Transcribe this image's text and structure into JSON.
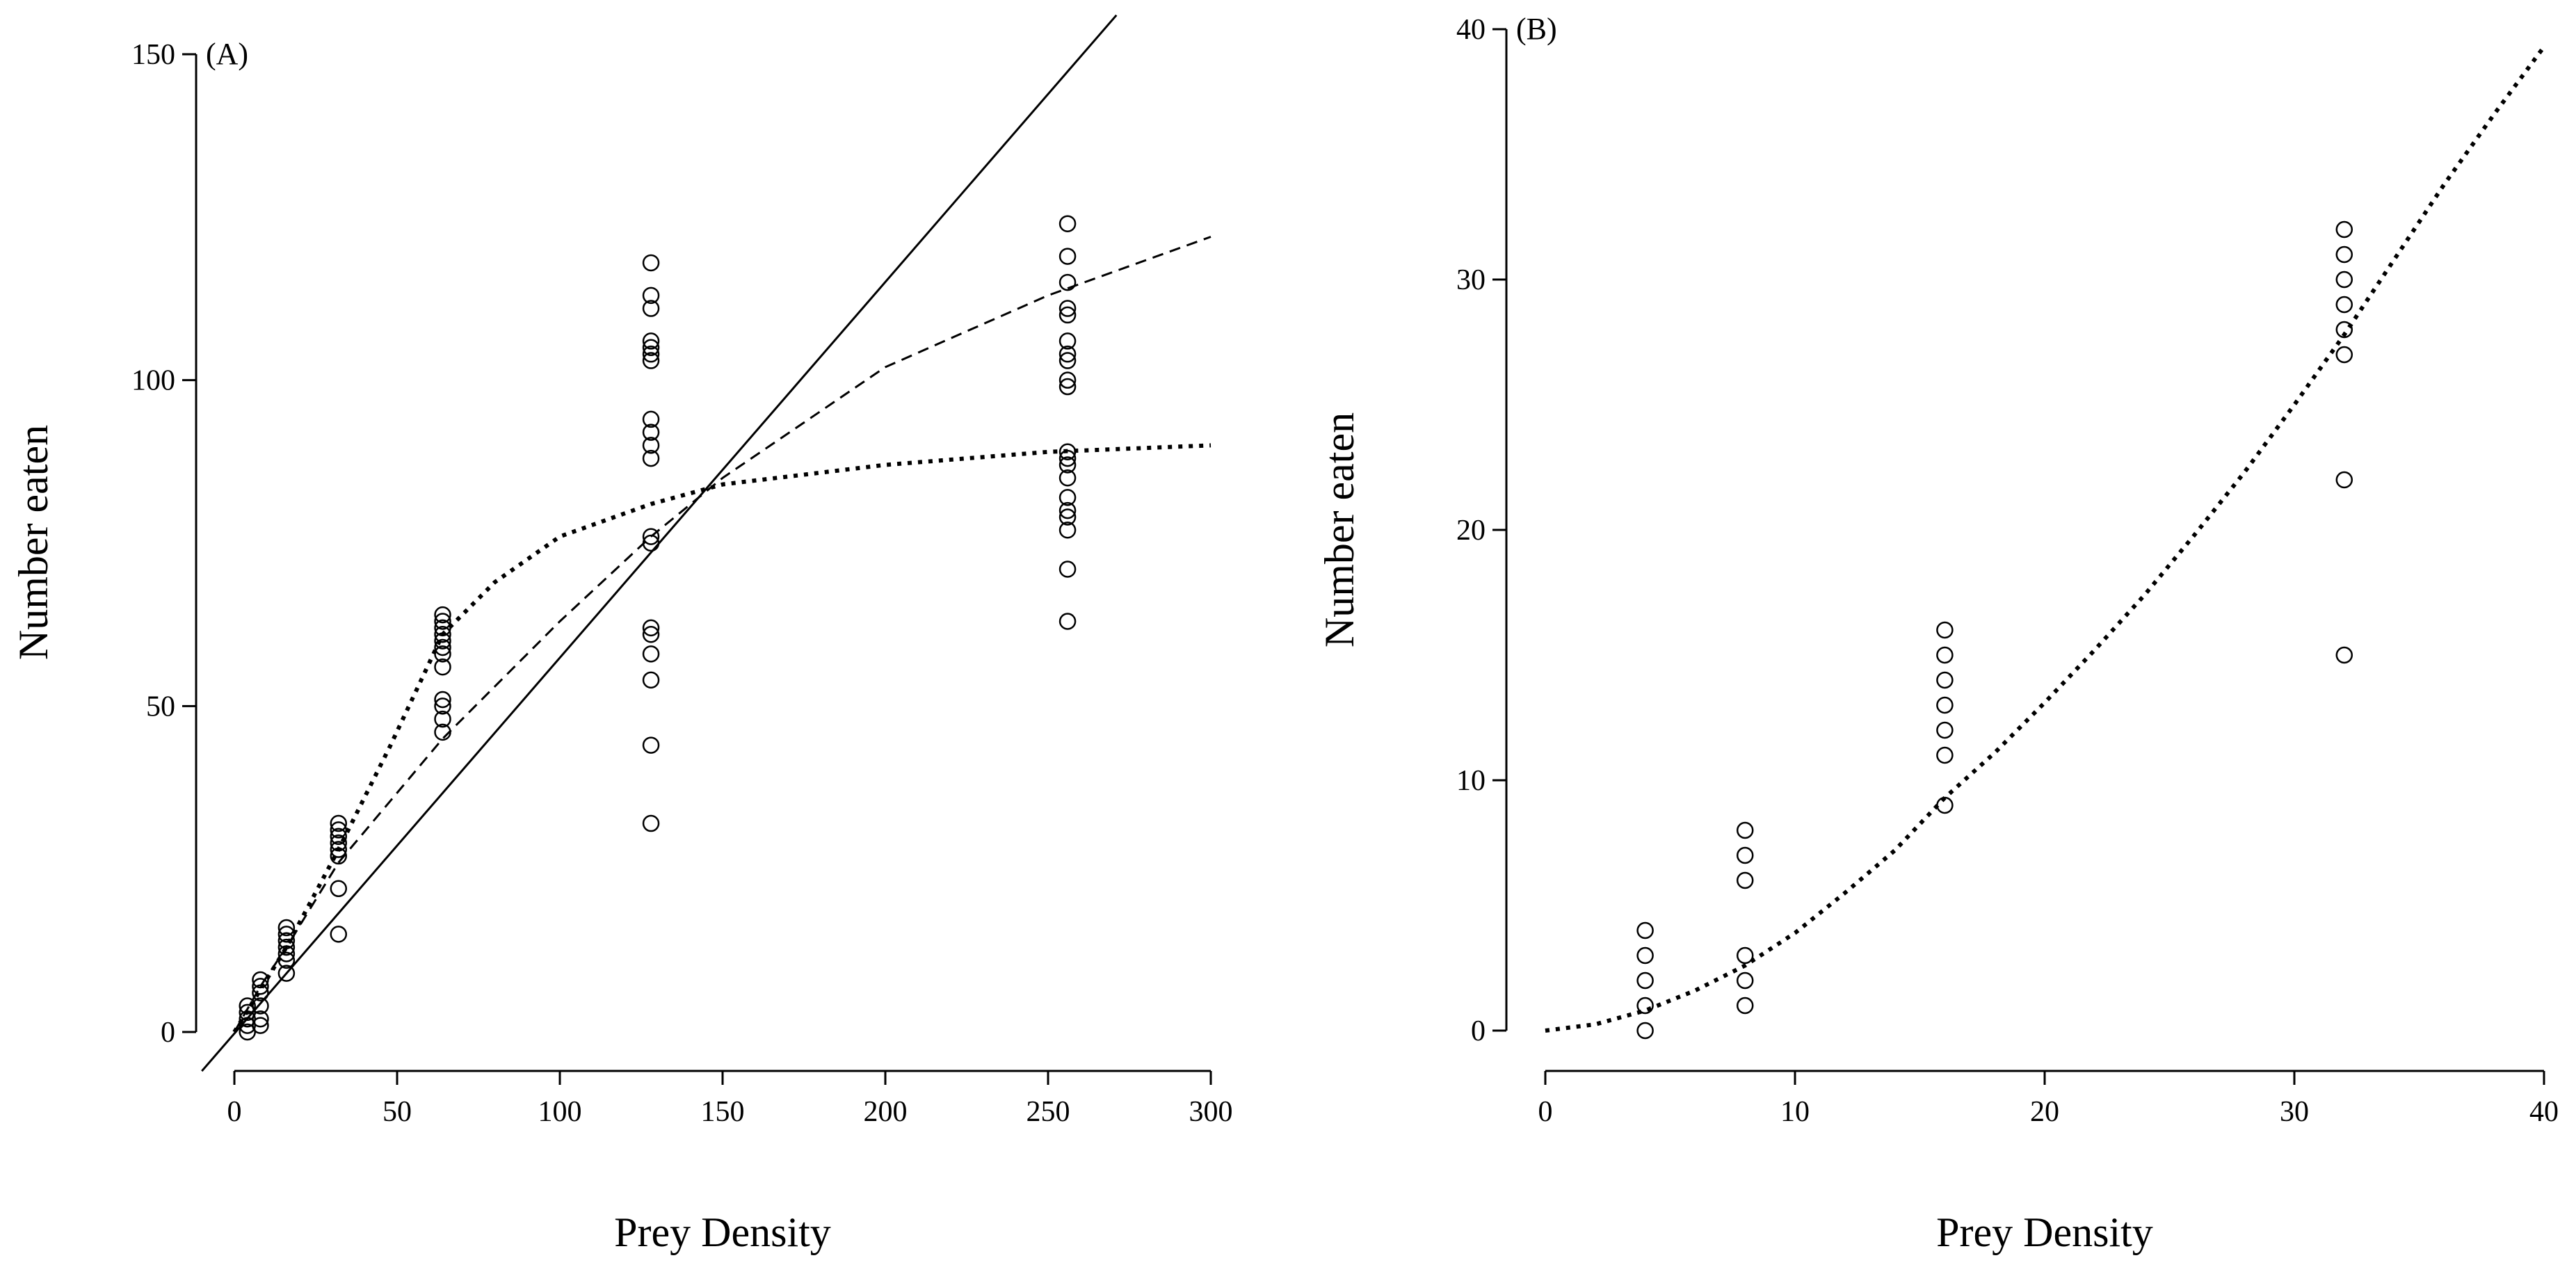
{
  "chart_data": [
    {
      "type": "scatter",
      "panel_label": "(A)",
      "xlabel": "Prey Density",
      "ylabel": "Number eaten",
      "xlim": [
        0,
        300
      ],
      "ylim": [
        0,
        150
      ],
      "xticks": [
        0,
        50,
        100,
        150,
        200,
        250,
        300
      ],
      "yticks": [
        0,
        50,
        100,
        150
      ],
      "grid": false,
      "series": [
        {
          "kind": "points",
          "marker": "open-circle",
          "points": [
            [
              4,
              0
            ],
            [
              4,
              1
            ],
            [
              4,
              2
            ],
            [
              4,
              3
            ],
            [
              4,
              4
            ],
            [
              8,
              1
            ],
            [
              8,
              2
            ],
            [
              8,
              4
            ],
            [
              8,
              6
            ],
            [
              8,
              7
            ],
            [
              8,
              8
            ],
            [
              16,
              9
            ],
            [
              16,
              11
            ],
            [
              16,
              12
            ],
            [
              16,
              13
            ],
            [
              16,
              14
            ],
            [
              16,
              15
            ],
            [
              16,
              16
            ],
            [
              32,
              15
            ],
            [
              32,
              22
            ],
            [
              32,
              27
            ],
            [
              32,
              28
            ],
            [
              32,
              29
            ],
            [
              32,
              30
            ],
            [
              32,
              31
            ],
            [
              32,
              32
            ],
            [
              64,
              46
            ],
            [
              64,
              48
            ],
            [
              64,
              50
            ],
            [
              64,
              51
            ],
            [
              64,
              56
            ],
            [
              64,
              58
            ],
            [
              64,
              59
            ],
            [
              64,
              60
            ],
            [
              64,
              61
            ],
            [
              64,
              62
            ],
            [
              64,
              63
            ],
            [
              64,
              64
            ],
            [
              128,
              32
            ],
            [
              128,
              44
            ],
            [
              128,
              54
            ],
            [
              128,
              58
            ],
            [
              128,
              61
            ],
            [
              128,
              62
            ],
            [
              128,
              75
            ],
            [
              128,
              76
            ],
            [
              128,
              88
            ],
            [
              128,
              90
            ],
            [
              128,
              92
            ],
            [
              128,
              94
            ],
            [
              128,
              103
            ],
            [
              128,
              104
            ],
            [
              128,
              105
            ],
            [
              128,
              106
            ],
            [
              128,
              111
            ],
            [
              128,
              113
            ],
            [
              128,
              118
            ],
            [
              256,
              63
            ],
            [
              256,
              71
            ],
            [
              256,
              77
            ],
            [
              256,
              79
            ],
            [
              256,
              80
            ],
            [
              256,
              82
            ],
            [
              256,
              85
            ],
            [
              256,
              87
            ],
            [
              256,
              88
            ],
            [
              256,
              89
            ],
            [
              256,
              99
            ],
            [
              256,
              100
            ],
            [
              256,
              103
            ],
            [
              256,
              104
            ],
            [
              256,
              106
            ],
            [
              256,
              110
            ],
            [
              256,
              111
            ],
            [
              256,
              115
            ],
            [
              256,
              119
            ],
            [
              256,
              124
            ]
          ]
        },
        {
          "kind": "line",
          "style": "solid",
          "points": [
            [
              -10,
              -6
            ],
            [
              271,
              156
            ]
          ]
        },
        {
          "kind": "line",
          "style": "dashed",
          "points": [
            [
              0,
              0
            ],
            [
              8,
              7
            ],
            [
              16,
              13
            ],
            [
              32,
              26
            ],
            [
              64,
              45
            ],
            [
              100,
              63
            ],
            [
              128,
              76
            ],
            [
              150,
              85
            ],
            [
              200,
              102
            ],
            [
              250,
              113
            ],
            [
              300,
              122
            ]
          ]
        },
        {
          "kind": "line",
          "style": "dotted",
          "points": [
            [
              0,
              0
            ],
            [
              16,
              13
            ],
            [
              32,
              28
            ],
            [
              48,
              44
            ],
            [
              64,
              61
            ],
            [
              80,
              69
            ],
            [
              100,
              76
            ],
            [
              128,
              81
            ],
            [
              150,
              84
            ],
            [
              200,
              87
            ],
            [
              250,
              89
            ],
            [
              300,
              90
            ]
          ]
        }
      ]
    },
    {
      "type": "scatter",
      "panel_label": "(B)",
      "xlabel": "Prey Density",
      "ylabel": "Number eaten",
      "xlim": [
        0,
        40
      ],
      "ylim": [
        0,
        40
      ],
      "xticks": [
        0,
        10,
        20,
        30,
        40
      ],
      "yticks": [
        0,
        10,
        20,
        30,
        40
      ],
      "grid": false,
      "series": [
        {
          "kind": "points",
          "marker": "open-circle",
          "points": [
            [
              4,
              0
            ],
            [
              4,
              1
            ],
            [
              4,
              2
            ],
            [
              4,
              3
            ],
            [
              4,
              4
            ],
            [
              8,
              1
            ],
            [
              8,
              2
            ],
            [
              8,
              3
            ],
            [
              8,
              6
            ],
            [
              8,
              7
            ],
            [
              8,
              8
            ],
            [
              16,
              9
            ],
            [
              16,
              11
            ],
            [
              16,
              12
            ],
            [
              16,
              13
            ],
            [
              16,
              14
            ],
            [
              16,
              15
            ],
            [
              16,
              16
            ],
            [
              32,
              15
            ],
            [
              32,
              22
            ],
            [
              32,
              27
            ],
            [
              32,
              28
            ],
            [
              32,
              29
            ],
            [
              32,
              30
            ],
            [
              32,
              31
            ],
            [
              32,
              32
            ]
          ]
        },
        {
          "kind": "line",
          "style": "dotted",
          "points": [
            [
              0,
              0
            ],
            [
              2,
              0.25
            ],
            [
              4,
              0.8
            ],
            [
              6,
              1.6
            ],
            [
              8,
              2.6
            ],
            [
              10,
              3.9
            ],
            [
              12,
              5.5
            ],
            [
              14,
              7.2
            ],
            [
              16,
              9.3
            ],
            [
              18,
              11.1
            ],
            [
              20,
              13.1
            ],
            [
              22,
              15.2
            ],
            [
              24,
              17.4
            ],
            [
              26,
              19.8
            ],
            [
              28,
              22.3
            ],
            [
              30,
              25.0
            ],
            [
              32,
              27.8
            ],
            [
              34,
              30.8
            ],
            [
              36,
              33.8
            ],
            [
              38,
              36.6
            ],
            [
              40,
              39.3
            ]
          ]
        }
      ]
    }
  ]
}
